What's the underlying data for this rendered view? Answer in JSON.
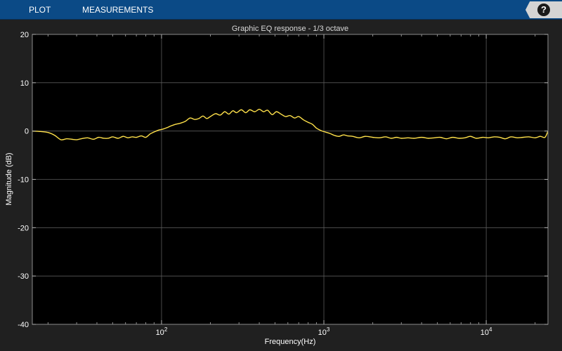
{
  "toolstrip": {
    "tabs": [
      {
        "label": "PLOT"
      },
      {
        "label": "MEASUREMENTS"
      }
    ],
    "help_label": "?"
  },
  "colors": {
    "toolstrip_bg": "#0b4a86",
    "figure_bg": "#202020",
    "axes_bg": "#000000",
    "grid": "#5a5a5a",
    "trace": "#ffe14a"
  },
  "chart_data": {
    "type": "line",
    "title": "Graphic EQ response - 1/3 octave",
    "xlabel": "Frequency(Hz)",
    "ylabel": "Magnitude (dB)",
    "x_scale": "log",
    "xlim": [
      16,
      24000
    ],
    "ylim": [
      -40,
      20
    ],
    "grid": true,
    "xticks": [
      {
        "value": 100,
        "base": "10",
        "exp": "2"
      },
      {
        "value": 1000,
        "base": "10",
        "exp": "3"
      },
      {
        "value": 10000,
        "base": "10",
        "exp": "4"
      }
    ],
    "yticks": [
      20,
      10,
      0,
      -10,
      -20,
      -30,
      -40
    ],
    "series": [
      {
        "x": [
          16,
          18,
          20,
          22,
          24,
          26,
          28,
          30,
          32,
          35,
          38,
          41,
          44,
          47,
          50,
          54,
          58,
          62,
          66,
          70,
          75,
          80,
          85,
          90,
          96,
          102,
          108,
          115,
          122,
          130,
          140,
          150,
          160,
          170,
          180,
          190,
          200,
          215,
          230,
          245,
          260,
          275,
          290,
          310,
          330,
          350,
          375,
          400,
          425,
          450,
          480,
          510,
          545,
          580,
          620,
          660,
          700,
          750,
          800,
          850,
          900,
          960,
          1020,
          1090,
          1160,
          1240,
          1320,
          1400,
          1500,
          1650,
          1800,
          2000,
          2200,
          2400,
          2600,
          2800,
          3000,
          3300,
          3600,
          4000,
          4400,
          4800,
          5200,
          5700,
          6200,
          6800,
          7400,
          8000,
          8700,
          9500,
          10300,
          11200,
          12100,
          13100,
          14200,
          15500,
          16800,
          18300,
          20000,
          21500,
          23000,
          24000
        ],
        "y": [
          0.0,
          -0.1,
          -0.3,
          -0.9,
          -1.8,
          -1.6,
          -1.7,
          -1.8,
          -1.6,
          -1.4,
          -1.7,
          -1.3,
          -1.5,
          -1.5,
          -1.2,
          -1.5,
          -1.1,
          -1.4,
          -1.2,
          -1.3,
          -1.0,
          -1.3,
          -0.6,
          -0.2,
          0.2,
          0.4,
          0.7,
          1.1,
          1.4,
          1.6,
          2.0,
          2.7,
          2.4,
          2.6,
          3.1,
          2.6,
          3.0,
          3.6,
          3.3,
          4.0,
          3.5,
          4.2,
          3.8,
          4.4,
          3.8,
          4.4,
          4.0,
          4.5,
          4.0,
          4.3,
          3.4,
          4.0,
          3.5,
          3.0,
          3.2,
          2.7,
          3.0,
          2.3,
          1.8,
          1.4,
          0.6,
          0.1,
          -0.2,
          -0.5,
          -0.9,
          -1.1,
          -0.8,
          -1.0,
          -1.1,
          -1.4,
          -1.1,
          -1.3,
          -1.4,
          -1.2,
          -1.5,
          -1.3,
          -1.5,
          -1.4,
          -1.5,
          -1.3,
          -1.5,
          -1.4,
          -1.3,
          -1.6,
          -1.3,
          -1.5,
          -1.4,
          -1.1,
          -1.5,
          -1.3,
          -1.4,
          -1.2,
          -1.3,
          -1.6,
          -1.2,
          -1.4,
          -1.3,
          -1.2,
          -1.4,
          -1.1,
          -1.3,
          0.0
        ]
      }
    ]
  }
}
